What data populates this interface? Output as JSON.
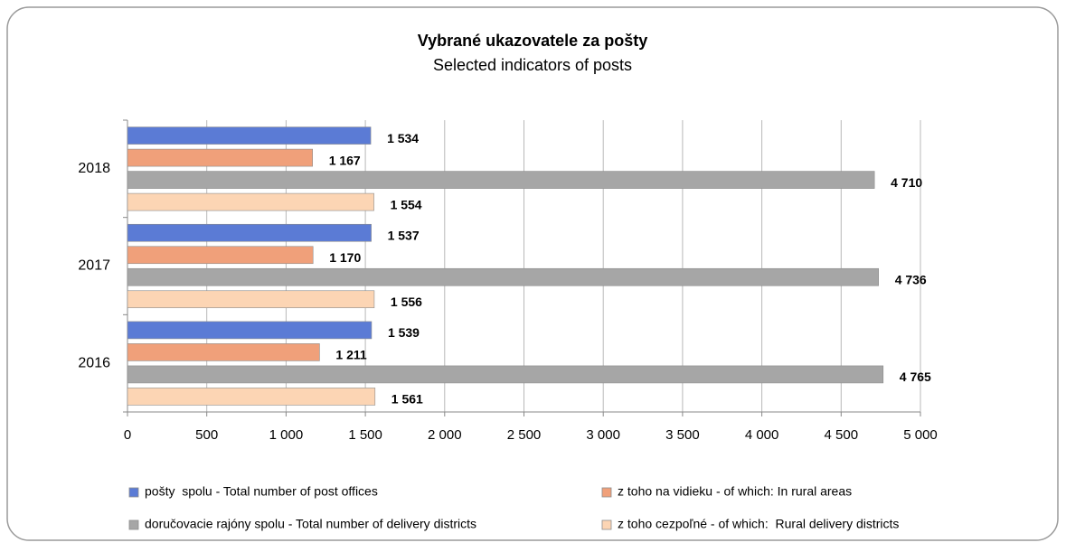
{
  "chart_data": {
    "type": "hbar",
    "title": "Vybrané ukazovatele za pošty",
    "subtitle": "Selected indicators of posts",
    "categories": [
      "2018",
      "2017",
      "2016"
    ],
    "series": [
      {
        "name": "pošty  spolu - Total number of post offices",
        "color": "#5b7bd5",
        "values": [
          1534,
          1537,
          1539
        ],
        "value_labels": [
          "1 534",
          "1 537",
          "1 539"
        ]
      },
      {
        "name": "z toho na vidieku - of which: In rural areas",
        "color": "#f0a07a",
        "values": [
          1167,
          1170,
          1211
        ],
        "value_labels": [
          "1 167",
          "1 170",
          "1 211"
        ]
      },
      {
        "name": "doručovacie rajóny spolu - Total number of delivery districts",
        "color": "#a6a6a6",
        "values": [
          4710,
          4736,
          4765
        ],
        "value_labels": [
          "4 710",
          "4 736",
          "4 765"
        ]
      },
      {
        "name": "z toho cezpoľné - of which:  Rural delivery districts",
        "color": "#fcd5b4",
        "values": [
          1554,
          1556,
          1561
        ],
        "value_labels": [
          "1 554",
          "1 556",
          "1 561"
        ]
      }
    ],
    "xlim": [
      0,
      5000
    ],
    "xticks": [
      0,
      500,
      {
        "value": 1000,
        "label": "1 000"
      },
      {
        "value": 1500,
        "label": "1 500"
      },
      {
        "value": 2000,
        "label": "2 000"
      },
      {
        "value": 2500,
        "label": "2 500"
      },
      {
        "value": 3000,
        "label": "3 000"
      },
      {
        "value": 3500,
        "label": "3 500"
      },
      {
        "value": 4000,
        "label": "4 000"
      },
      {
        "value": 4500,
        "label": "4 500"
      },
      {
        "value": 5000,
        "label": "5 000"
      }
    ],
    "grid": true
  }
}
